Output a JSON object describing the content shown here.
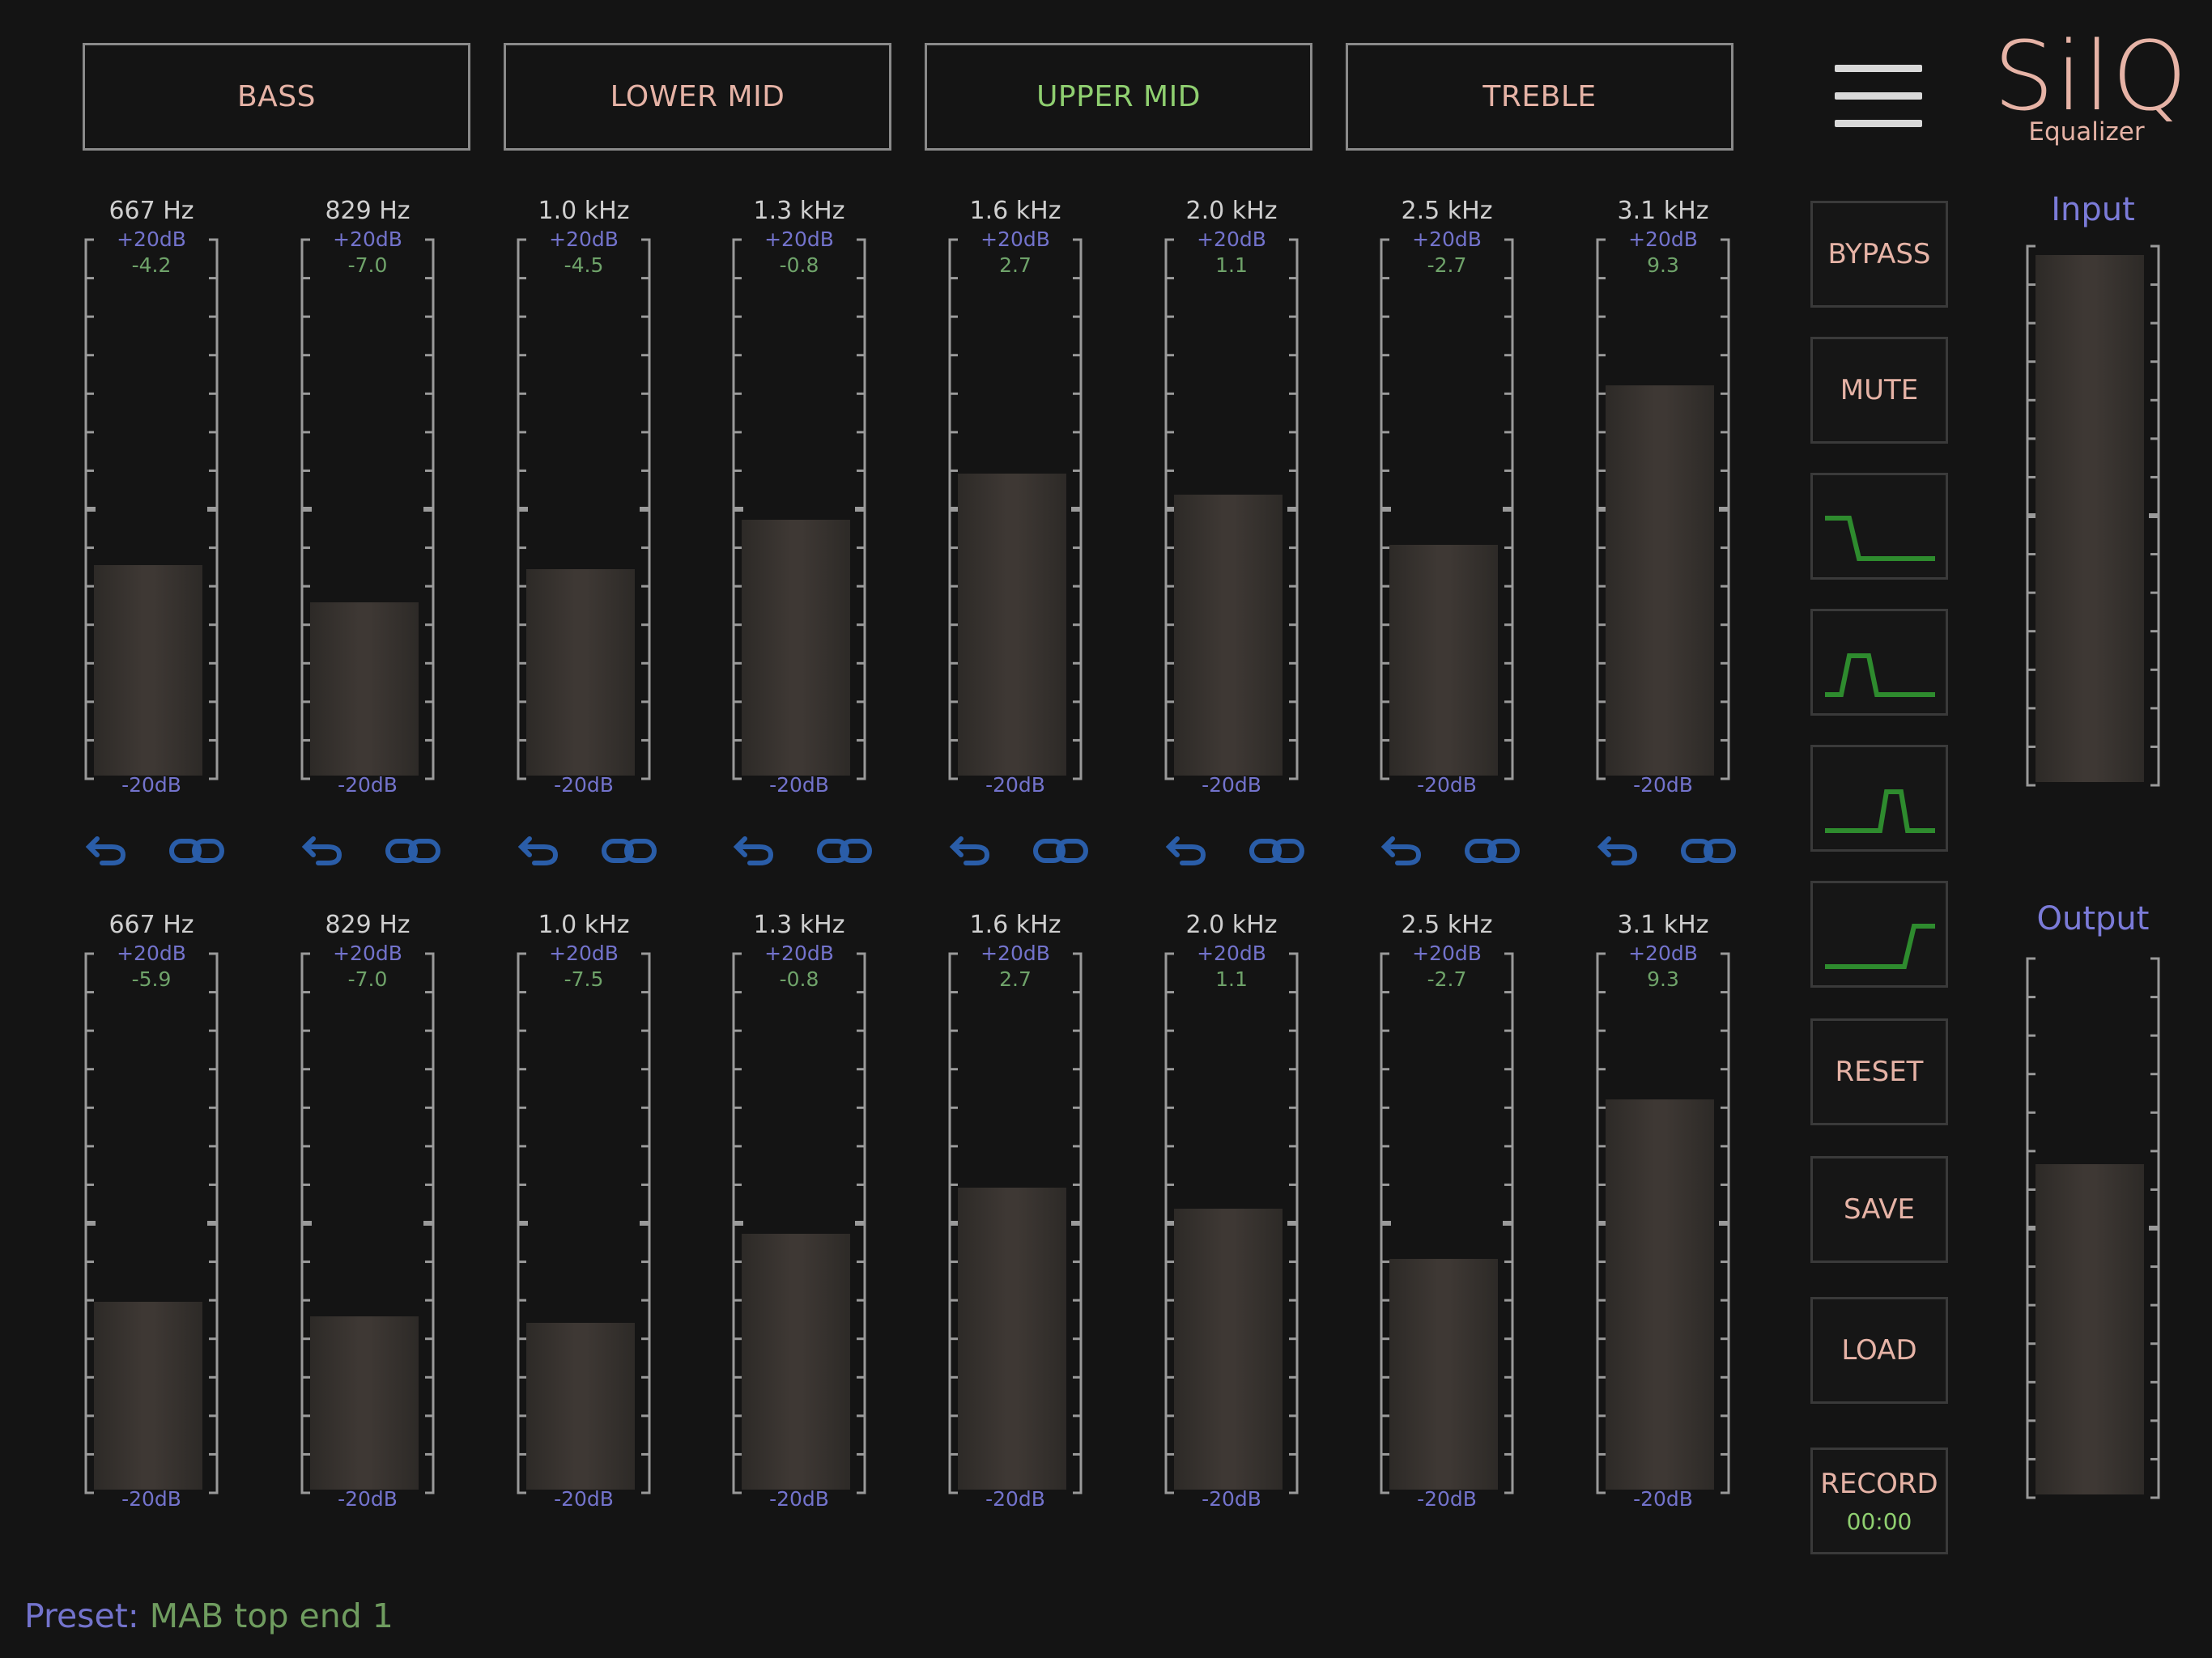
{
  "bands": [
    {
      "label": "BASS",
      "active": false
    },
    {
      "label": "LOWER MID",
      "active": false
    },
    {
      "label": "UPPER MID",
      "active": true
    },
    {
      "label": "TREBLE",
      "active": false
    }
  ],
  "logo": {
    "name": "SilQ",
    "subtitle": "Equalizer"
  },
  "menu_icon": "hamburger-menu-icon",
  "scale": {
    "max_label": "+20dB",
    "min_label": "-20dB",
    "max_db": 20,
    "min_db": -20
  },
  "top_channel": [
    {
      "freq": "667 Hz",
      "gain": "-4.2"
    },
    {
      "freq": "829 Hz",
      "gain": "-7.0"
    },
    {
      "freq": "1.0 kHz",
      "gain": "-4.5"
    },
    {
      "freq": "1.3 kHz",
      "gain": "-0.8"
    },
    {
      "freq": "1.6 kHz",
      "gain": "2.7"
    },
    {
      "freq": "2.0 kHz",
      "gain": "1.1"
    },
    {
      "freq": "2.5 kHz",
      "gain": "-2.7"
    },
    {
      "freq": "3.1 kHz",
      "gain": "9.3"
    }
  ],
  "bottom_channel": [
    {
      "freq": "667 Hz",
      "gain": "-5.9"
    },
    {
      "freq": "829 Hz",
      "gain": "-7.0"
    },
    {
      "freq": "1.0 kHz",
      "gain": "-7.5"
    },
    {
      "freq": "1.3 kHz",
      "gain": "-0.8"
    },
    {
      "freq": "1.6 kHz",
      "gain": "2.7"
    },
    {
      "freq": "2.0 kHz",
      "gain": "1.1"
    },
    {
      "freq": "2.5 kHz",
      "gain": "-2.7"
    },
    {
      "freq": "3.1 kHz",
      "gain": "9.3"
    }
  ],
  "link_icons": {
    "undo": "undo-arrow-icon",
    "link": "chain-link-icon"
  },
  "side_buttons": {
    "bypass": "BYPASS",
    "mute": "MUTE",
    "filters": [
      "low-shelf-filter-icon",
      "band-pass-filter-icon",
      "narrow-band-filter-icon",
      "high-shelf-filter-icon"
    ],
    "reset": "RESET",
    "save": "SAVE",
    "load": "LOAD",
    "record": "RECORD",
    "record_time": "00:00"
  },
  "meters": {
    "input": {
      "label": "Input",
      "level": 0.99
    },
    "output": {
      "label": "Output",
      "level": 0.62
    }
  },
  "preset": {
    "label": "Preset:",
    "value": "MAB top end 1"
  },
  "colors": {
    "background": "#141414",
    "label_pink": "#e6b3a6",
    "active_green": "#8fcf70",
    "scale_blue": "#7373cc",
    "value_green": "#6fa36a",
    "icon_blue": "#2a5da8",
    "filter_green": "#2e8b2e"
  }
}
